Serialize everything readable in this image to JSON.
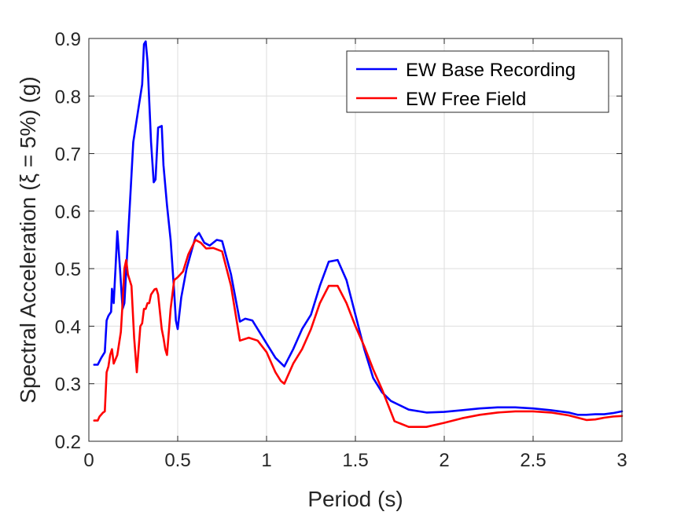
{
  "chart_data": {
    "type": "line",
    "xlabel": "Period (s)",
    "ylabel": "Spectral Acceleration (ξ = 5%) (g)",
    "xlim": [
      0,
      3
    ],
    "ylim": [
      0.2,
      0.9
    ],
    "xticks": [
      0,
      0.5,
      1,
      1.5,
      2,
      2.5,
      3
    ],
    "xtick_labels": [
      "0",
      "0.5",
      "1",
      "1.5",
      "2",
      "2.5",
      "3"
    ],
    "yticks": [
      0.2,
      0.3,
      0.4,
      0.5,
      0.6,
      0.7,
      0.8,
      0.9
    ],
    "ytick_labels": [
      "0.2",
      "0.3",
      "0.4",
      "0.5",
      "0.6",
      "0.7",
      "0.8",
      "0.9"
    ],
    "grid": true,
    "legend_position": "top-right",
    "series": [
      {
        "name": "EW Base Recording",
        "color": "#0000ff",
        "x": [
          0.03,
          0.05,
          0.07,
          0.09,
          0.1,
          0.11,
          0.125,
          0.13,
          0.14,
          0.15,
          0.16,
          0.175,
          0.19,
          0.2,
          0.22,
          0.25,
          0.27,
          0.29,
          0.3,
          0.31,
          0.32,
          0.33,
          0.35,
          0.365,
          0.375,
          0.39,
          0.41,
          0.42,
          0.44,
          0.46,
          0.48,
          0.49,
          0.5,
          0.52,
          0.55,
          0.6,
          0.62,
          0.65,
          0.68,
          0.72,
          0.75,
          0.8,
          0.85,
          0.88,
          0.92,
          1.0,
          1.05,
          1.1,
          1.15,
          1.2,
          1.25,
          1.3,
          1.35,
          1.4,
          1.45,
          1.5,
          1.55,
          1.6,
          1.65,
          1.7,
          1.8,
          1.9,
          2.0,
          2.1,
          2.2,
          2.3,
          2.4,
          2.5,
          2.6,
          2.7,
          2.75,
          2.8,
          2.85,
          2.9,
          2.95,
          3.0
        ],
        "y": [
          0.333,
          0.333,
          0.345,
          0.355,
          0.41,
          0.418,
          0.425,
          0.465,
          0.44,
          0.5,
          0.565,
          0.5,
          0.43,
          0.44,
          0.55,
          0.72,
          0.76,
          0.8,
          0.82,
          0.89,
          0.895,
          0.86,
          0.72,
          0.65,
          0.655,
          0.745,
          0.748,
          0.68,
          0.61,
          0.55,
          0.46,
          0.41,
          0.395,
          0.45,
          0.5,
          0.555,
          0.562,
          0.545,
          0.54,
          0.55,
          0.548,
          0.49,
          0.408,
          0.413,
          0.41,
          0.37,
          0.345,
          0.33,
          0.36,
          0.395,
          0.42,
          0.47,
          0.512,
          0.515,
          0.48,
          0.42,
          0.36,
          0.31,
          0.285,
          0.27,
          0.255,
          0.25,
          0.251,
          0.254,
          0.257,
          0.259,
          0.259,
          0.257,
          0.254,
          0.25,
          0.246,
          0.246,
          0.247,
          0.247,
          0.249,
          0.252
        ]
      },
      {
        "name": "EW Free Field",
        "color": "#ff0000",
        "x": [
          0.03,
          0.05,
          0.06,
          0.08,
          0.09,
          0.1,
          0.11,
          0.12,
          0.13,
          0.14,
          0.16,
          0.18,
          0.19,
          0.2,
          0.21,
          0.22,
          0.24,
          0.255,
          0.27,
          0.29,
          0.3,
          0.31,
          0.32,
          0.33,
          0.34,
          0.35,
          0.37,
          0.38,
          0.39,
          0.41,
          0.42,
          0.43,
          0.44,
          0.46,
          0.48,
          0.5,
          0.53,
          0.56,
          0.6,
          0.63,
          0.66,
          0.7,
          0.75,
          0.8,
          0.85,
          0.9,
          0.95,
          1.0,
          1.05,
          1.08,
          1.1,
          1.15,
          1.2,
          1.25,
          1.3,
          1.35,
          1.4,
          1.45,
          1.5,
          1.55,
          1.6,
          1.65,
          1.72,
          1.8,
          1.9,
          2.0,
          2.1,
          2.2,
          2.3,
          2.4,
          2.5,
          2.6,
          2.7,
          2.8,
          2.85,
          2.9,
          2.95,
          3.0
        ],
        "y": [
          0.236,
          0.236,
          0.243,
          0.25,
          0.252,
          0.32,
          0.33,
          0.35,
          0.36,
          0.335,
          0.35,
          0.39,
          0.44,
          0.5,
          0.515,
          0.49,
          0.47,
          0.38,
          0.32,
          0.4,
          0.405,
          0.43,
          0.43,
          0.44,
          0.44,
          0.455,
          0.464,
          0.465,
          0.455,
          0.395,
          0.38,
          0.36,
          0.35,
          0.43,
          0.48,
          0.485,
          0.495,
          0.525,
          0.55,
          0.545,
          0.535,
          0.536,
          0.53,
          0.47,
          0.375,
          0.38,
          0.375,
          0.355,
          0.32,
          0.305,
          0.3,
          0.335,
          0.36,
          0.395,
          0.44,
          0.47,
          0.47,
          0.44,
          0.4,
          0.365,
          0.325,
          0.29,
          0.235,
          0.225,
          0.225,
          0.232,
          0.24,
          0.246,
          0.25,
          0.252,
          0.252,
          0.25,
          0.245,
          0.237,
          0.238,
          0.241,
          0.243,
          0.244
        ]
      }
    ]
  }
}
